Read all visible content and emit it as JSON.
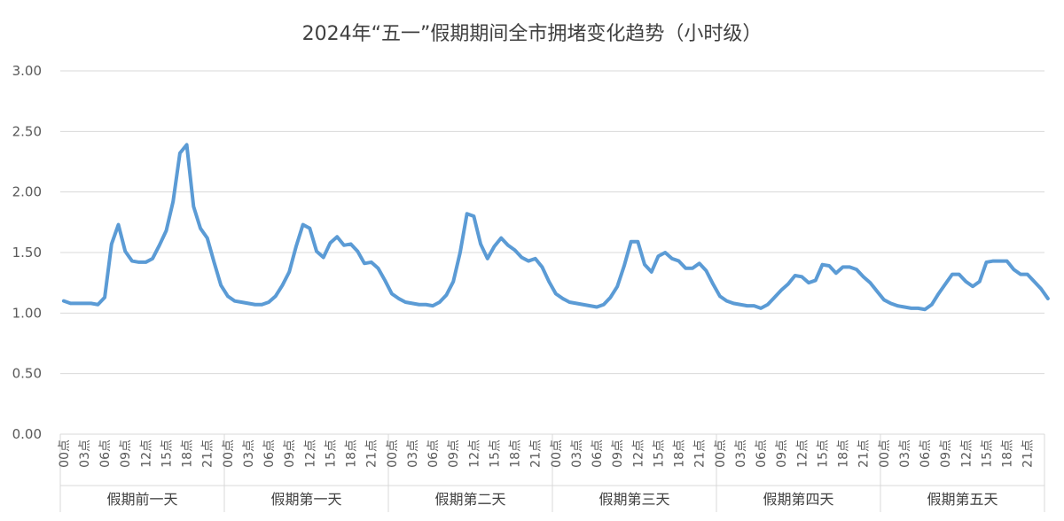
{
  "chart_data": {
    "type": "line",
    "title": "2024年“五一”假期期间全市拥堵变化趋势（小时级）",
    "xlabel": "",
    "ylabel": "",
    "ylim": [
      0,
      3
    ],
    "yticks": [
      "0.00",
      "0.50",
      "1.00",
      "1.50",
      "2.00",
      "2.50",
      "3.00"
    ],
    "grid": true,
    "legend": "none",
    "line_color": "#5B9BD5",
    "grid_color": "#D9D9D9",
    "groups": [
      "假期前一天",
      "假期第一天",
      "假期第二天",
      "假期第三天",
      "假期第四天",
      "假期第五天"
    ],
    "hour_tick_labels": [
      "00点",
      "03点",
      "06点",
      "09点",
      "12点",
      "15点",
      "18点",
      "21点"
    ],
    "series": [
      {
        "values": [
          1.1,
          1.08,
          1.08,
          1.08,
          1.08,
          1.07,
          1.13,
          1.57,
          1.73,
          1.51,
          1.43,
          1.42,
          1.42,
          1.45,
          1.56,
          1.68,
          1.92,
          2.32,
          2.39,
          1.88,
          1.7,
          1.62,
          1.42,
          1.23,
          1.14,
          1.1,
          1.09,
          1.08,
          1.07,
          1.07,
          1.09,
          1.14,
          1.23,
          1.34,
          1.55,
          1.73,
          1.7,
          1.51,
          1.46,
          1.58,
          1.63,
          1.56,
          1.57,
          1.51,
          1.41,
          1.42,
          1.37,
          1.27,
          1.16,
          1.12,
          1.09,
          1.08,
          1.07,
          1.07,
          1.06,
          1.09,
          1.15,
          1.26,
          1.5,
          1.82,
          1.8,
          1.57,
          1.45,
          1.55,
          1.62,
          1.56,
          1.52,
          1.46,
          1.43,
          1.45,
          1.38,
          1.26,
          1.16,
          1.12,
          1.09,
          1.08,
          1.07,
          1.06,
          1.05,
          1.07,
          1.13,
          1.22,
          1.39,
          1.59,
          1.59,
          1.4,
          1.34,
          1.47,
          1.5,
          1.45,
          1.43,
          1.37,
          1.37,
          1.41,
          1.35,
          1.24,
          1.14,
          1.1,
          1.08,
          1.07,
          1.06,
          1.06,
          1.04,
          1.07,
          1.13,
          1.19,
          1.24,
          1.31,
          1.3,
          1.25,
          1.27,
          1.4,
          1.39,
          1.33,
          1.38,
          1.38,
          1.36,
          1.3,
          1.25,
          1.18,
          1.11,
          1.08,
          1.06,
          1.05,
          1.04,
          1.04,
          1.03,
          1.07,
          1.16,
          1.24,
          1.32,
          1.32,
          1.26,
          1.22,
          1.26,
          1.42,
          1.43,
          1.43,
          1.43,
          1.36,
          1.32,
          1.32,
          1.26,
          1.2,
          1.12
        ]
      }
    ]
  }
}
